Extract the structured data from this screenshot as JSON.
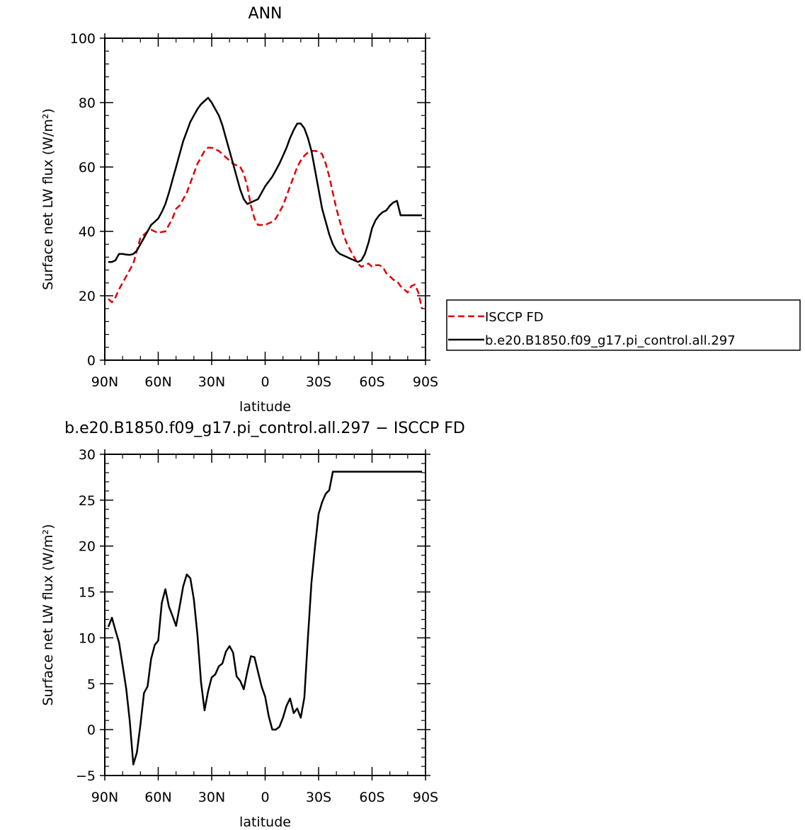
{
  "chart_data": [
    {
      "type": "line",
      "title": "ANN",
      "xlabel": "latitude",
      "ylabel": "Surface net LW flux (W/m²)",
      "xlim": [
        90,
        -90
      ],
      "ylim": [
        0,
        100
      ],
      "x_ticks": [
        90,
        60,
        30,
        0,
        -30,
        -60,
        -90
      ],
      "x_tick_labels": [
        "90N",
        "60N",
        "30N",
        "0",
        "30S",
        "60S",
        "90S"
      ],
      "y_ticks": [
        0,
        20,
        40,
        60,
        80,
        100
      ],
      "y_tick_labels": [
        "0",
        "20",
        "40",
        "60",
        "80",
        "100"
      ],
      "legend_placement": "right",
      "series": [
        {
          "name": "ISCCP FD",
          "color": "#e00000",
          "dash": "dashed",
          "x": [
            88,
            86,
            84,
            82,
            80,
            78,
            76,
            74,
            72,
            70,
            68,
            66,
            64,
            62,
            60,
            58,
            56,
            54,
            52,
            50,
            48,
            46,
            44,
            42,
            40,
            38,
            36,
            34,
            32,
            30,
            28,
            26,
            24,
            22,
            20,
            18,
            16,
            14,
            12,
            10,
            8,
            6,
            4,
            2,
            0,
            -2,
            -4,
            -6,
            -8,
            -10,
            -12,
            -14,
            -16,
            -18,
            -20,
            -22,
            -24,
            -26,
            -28,
            -30,
            -32,
            -34,
            -36,
            -38,
            -40,
            -42,
            -44,
            -46,
            -48,
            -50,
            -52,
            -54,
            -56,
            -58,
            -60,
            -62,
            -64,
            -66,
            -68,
            -70,
            -72,
            -74,
            -76,
            -78,
            -80,
            -82,
            -84,
            -86,
            -88
          ],
          "y": [
            19,
            18,
            19.5,
            22,
            24,
            26,
            28,
            30,
            34,
            38,
            39,
            40,
            40.5,
            40,
            39.5,
            39.8,
            40,
            42,
            44,
            47,
            48,
            50,
            52,
            55,
            58,
            61,
            63,
            65,
            66,
            66,
            65.5,
            65,
            64,
            63,
            62,
            61,
            60.5,
            60,
            58,
            54,
            48,
            44,
            42,
            42,
            42,
            42.5,
            43,
            44,
            46,
            48,
            51,
            54,
            57,
            60,
            62,
            63.5,
            64.5,
            65,
            65,
            64.8,
            64,
            61,
            57,
            52,
            47,
            43,
            39,
            36,
            34,
            32,
            30,
            29,
            29.5,
            30,
            29,
            29.5,
            29.5,
            29,
            27,
            26,
            25,
            24.5,
            23,
            22,
            21,
            23,
            23.5,
            21,
            16
          ]
        },
        {
          "name": "b.e20.B1850.f09_g17.pi_control.all.297",
          "color": "#000000",
          "dash": "solid",
          "x": [
            88,
            86,
            84,
            82,
            80,
            78,
            76,
            74,
            72,
            70,
            68,
            66,
            64,
            62,
            60,
            58,
            56,
            54,
            52,
            50,
            48,
            46,
            44,
            42,
            40,
            38,
            36,
            34,
            32,
            30,
            28,
            26,
            24,
            22,
            20,
            18,
            16,
            14,
            12,
            10,
            8,
            6,
            4,
            2,
            0,
            -2,
            -4,
            -6,
            -8,
            -10,
            -12,
            -14,
            -16,
            -18,
            -20,
            -22,
            -24,
            -26,
            -28,
            -30,
            -32,
            -34,
            -36,
            -38,
            -40,
            -42,
            -44,
            -46,
            -48,
            -50,
            -52,
            -54,
            -56,
            -58,
            -60,
            -62,
            -64,
            -66,
            -68,
            -70,
            -72,
            -74,
            -76,
            -78,
            -80,
            -82,
            -84,
            -86,
            -88
          ],
          "y": [
            30.5,
            30.5,
            31,
            33,
            33,
            32.8,
            32.7,
            33,
            34,
            36,
            38,
            40,
            42,
            43,
            44,
            46,
            48.5,
            52,
            56,
            60,
            64,
            68,
            71,
            74,
            76,
            78,
            79.5,
            80.5,
            81.5,
            80,
            78,
            76,
            73,
            69,
            65,
            61,
            57,
            53,
            50,
            48.5,
            49,
            49.5,
            50,
            52,
            54,
            55.5,
            57,
            59,
            61,
            63.5,
            66,
            69,
            71.5,
            73.5,
            73.5,
            72,
            69,
            65,
            59,
            53,
            47,
            43,
            39,
            36,
            34,
            33,
            32.5,
            32,
            31.5,
            31,
            30.5,
            31,
            33,
            36.5,
            41,
            43.5,
            45,
            46,
            46.5,
            48,
            49,
            49.5,
            45,
            45,
            45,
            45,
            45,
            45,
            45
          ]
        }
      ]
    },
    {
      "type": "line",
      "title": "b.e20.B1850.f09_g17.pi_control.all.297 − ISCCP FD",
      "xlabel": "latitude",
      "ylabel": "Surface net LW flux (W/m²)",
      "xlim": [
        90,
        -90
      ],
      "ylim": [
        -5,
        30
      ],
      "x_ticks": [
        90,
        60,
        30,
        0,
        -30,
        -60,
        -90
      ],
      "x_tick_labels": [
        "90N",
        "60N",
        "30N",
        "0",
        "30S",
        "60S",
        "90S"
      ],
      "y_ticks": [
        -5,
        0,
        5,
        10,
        15,
        20,
        25,
        30
      ],
      "y_tick_labels": [
        "−5",
        "0",
        "5",
        "10",
        "15",
        "20",
        "25",
        "30"
      ],
      "series": [
        {
          "color": "#000000",
          "dash": "solid",
          "x": [
            88,
            86,
            84,
            82,
            80,
            78,
            76,
            74,
            72,
            70,
            68,
            66,
            64,
            62,
            60,
            58,
            56,
            54,
            52,
            50,
            48,
            46,
            44,
            42,
            40,
            38,
            36,
            34,
            32,
            30,
            28,
            26,
            24,
            22,
            20,
            18,
            16,
            14,
            12,
            10,
            8,
            6,
            4,
            2,
            0,
            -2,
            -4,
            -6,
            -8,
            -10,
            -12,
            -14,
            -16,
            -18,
            -20,
            -22,
            -24,
            -26,
            -28,
            -30,
            -32,
            -34,
            -36,
            -38,
            -40,
            -42,
            -44,
            -46,
            -48,
            -50,
            -52,
            -54,
            -56,
            -58,
            -60,
            -62,
            -64,
            -66,
            -68,
            -70,
            -72,
            -74,
            -76,
            -78,
            -80,
            -82,
            -84,
            -86,
            -88
          ],
          "y": [
            11.2,
            12.2,
            10.8,
            9.5,
            7,
            4.5,
            1,
            -3.8,
            -2.5,
            0.5,
            4,
            4.7,
            7.7,
            9.2,
            9.7,
            13.8,
            15.3,
            13.4,
            12.4,
            11.3,
            13.4,
            15.6,
            16.9,
            16.5,
            14.2,
            10.3,
            5.2,
            2.1,
            4.2,
            5.7,
            6,
            6.9,
            7.2,
            8.5,
            9.1,
            8.4,
            5.8,
            5.3,
            4.4,
            6.3,
            8.0,
            7.9,
            6.3,
            4.7,
            3.6,
            1.5,
            0,
            0,
            0.3,
            1.3,
            2.6,
            3.4,
            1.8,
            2.3,
            1.3,
            3.5,
            10,
            16,
            20,
            23.5,
            24.8,
            25.7,
            26.1,
            28.1,
            28.1,
            28.1,
            28.1,
            28.1,
            28.1,
            28.1,
            28.1,
            28.1,
            28.1,
            28.1,
            28.1,
            28.1,
            28.1,
            28.1,
            28.1,
            28.1,
            28.1,
            28.1,
            28.1,
            28.1,
            28.1,
            28.1,
            28.1,
            28.1,
            28.1
          ]
        }
      ]
    }
  ]
}
